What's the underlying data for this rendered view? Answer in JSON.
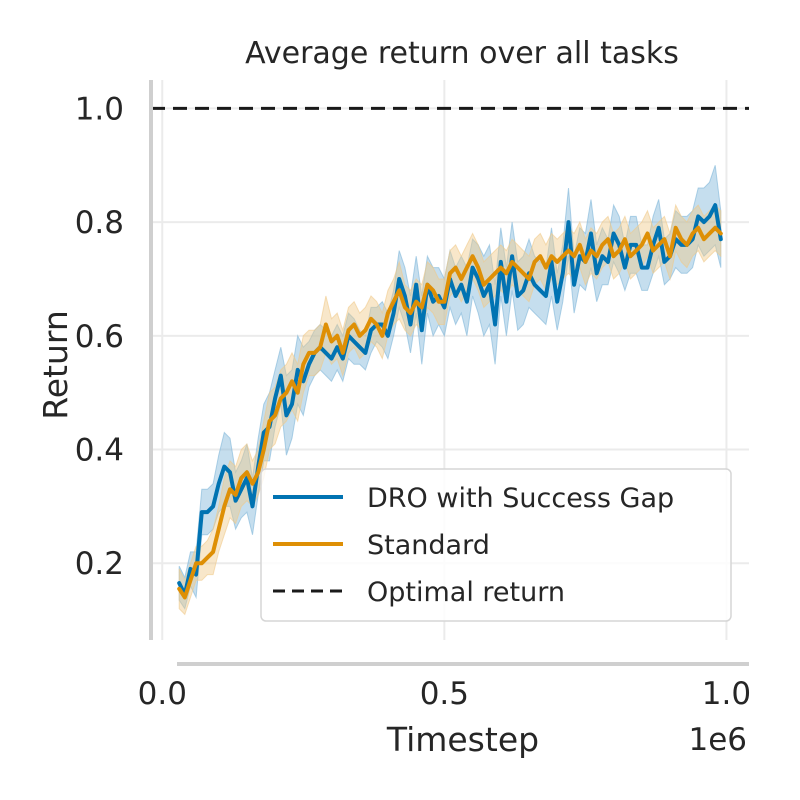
{
  "chart_data": {
    "type": "line",
    "title": "Average return over all tasks",
    "xlabel": "Timestep",
    "ylabel": "Return",
    "x_offset_label": "1e6",
    "xlim": [
      -0.02,
      1.04
    ],
    "ylim": [
      0.065,
      1.05
    ],
    "xticks": [
      0.0,
      0.5,
      1.0
    ],
    "xtick_labels": [
      "0.0",
      "0.5",
      "1.0"
    ],
    "yticks": [
      0.2,
      0.4,
      0.6,
      0.8,
      1.0
    ],
    "ytick_labels": [
      "0.2",
      "0.4",
      "0.6",
      "0.8",
      "1.0"
    ],
    "grid": true,
    "legend_position": "lower-right",
    "series": [
      {
        "name": "DRO with Success Gap",
        "color": "#0173b2",
        "band_color": "#7fb6d9",
        "style": "solid",
        "x": [
          0.03,
          0.04,
          0.05,
          0.06,
          0.07,
          0.08,
          0.09,
          0.1,
          0.11,
          0.12,
          0.13,
          0.14,
          0.15,
          0.16,
          0.17,
          0.18,
          0.19,
          0.2,
          0.21,
          0.22,
          0.23,
          0.24,
          0.25,
          0.26,
          0.27,
          0.28,
          0.29,
          0.3,
          0.31,
          0.32,
          0.33,
          0.34,
          0.35,
          0.36,
          0.37,
          0.38,
          0.39,
          0.4,
          0.41,
          0.42,
          0.43,
          0.44,
          0.45,
          0.46,
          0.47,
          0.48,
          0.49,
          0.5,
          0.51,
          0.52,
          0.53,
          0.54,
          0.55,
          0.56,
          0.57,
          0.58,
          0.59,
          0.6,
          0.61,
          0.62,
          0.63,
          0.64,
          0.65,
          0.66,
          0.67,
          0.68,
          0.69,
          0.7,
          0.71,
          0.72,
          0.73,
          0.74,
          0.75,
          0.76,
          0.77,
          0.78,
          0.79,
          0.8,
          0.81,
          0.82,
          0.83,
          0.84,
          0.85,
          0.86,
          0.87,
          0.88,
          0.89,
          0.9,
          0.91,
          0.92,
          0.93,
          0.94,
          0.95,
          0.96,
          0.97,
          0.98,
          0.99
        ],
        "y": [
          0.165,
          0.145,
          0.19,
          0.18,
          0.29,
          0.29,
          0.3,
          0.34,
          0.37,
          0.36,
          0.31,
          0.33,
          0.35,
          0.3,
          0.37,
          0.43,
          0.44,
          0.49,
          0.53,
          0.46,
          0.48,
          0.54,
          0.52,
          0.55,
          0.57,
          0.58,
          0.57,
          0.56,
          0.58,
          0.56,
          0.6,
          0.59,
          0.58,
          0.57,
          0.61,
          0.62,
          0.62,
          0.6,
          0.64,
          0.7,
          0.67,
          0.62,
          0.69,
          0.61,
          0.69,
          0.66,
          0.67,
          0.65,
          0.7,
          0.67,
          0.69,
          0.66,
          0.72,
          0.7,
          0.67,
          0.69,
          0.62,
          0.73,
          0.66,
          0.74,
          0.67,
          0.68,
          0.71,
          0.69,
          0.68,
          0.67,
          0.73,
          0.66,
          0.71,
          0.8,
          0.69,
          0.74,
          0.73,
          0.78,
          0.71,
          0.74,
          0.73,
          0.78,
          0.76,
          0.72,
          0.76,
          0.76,
          0.72,
          0.72,
          0.76,
          0.79,
          0.73,
          0.74,
          0.77,
          0.76,
          0.76,
          0.77,
          0.81,
          0.8,
          0.81,
          0.83,
          0.77
        ],
        "band_lower": [
          0.135,
          0.12,
          0.16,
          0.14,
          0.25,
          0.25,
          0.26,
          0.29,
          0.3,
          0.3,
          0.26,
          0.28,
          0.29,
          0.25,
          0.32,
          0.38,
          0.38,
          0.44,
          0.48,
          0.39,
          0.42,
          0.48,
          0.46,
          0.51,
          0.53,
          0.54,
          0.53,
          0.52,
          0.54,
          0.52,
          0.56,
          0.55,
          0.55,
          0.54,
          0.57,
          0.59,
          0.58,
          0.56,
          0.6,
          0.65,
          0.62,
          0.57,
          0.64,
          0.55,
          0.64,
          0.6,
          0.62,
          0.6,
          0.65,
          0.62,
          0.64,
          0.6,
          0.67,
          0.64,
          0.6,
          0.62,
          0.55,
          0.67,
          0.6,
          0.68,
          0.61,
          0.62,
          0.65,
          0.64,
          0.63,
          0.62,
          0.67,
          0.61,
          0.66,
          0.74,
          0.64,
          0.69,
          0.68,
          0.72,
          0.66,
          0.69,
          0.69,
          0.73,
          0.71,
          0.68,
          0.71,
          0.71,
          0.68,
          0.68,
          0.71,
          0.74,
          0.69,
          0.7,
          0.72,
          0.71,
          0.71,
          0.72,
          0.76,
          0.74,
          0.75,
          0.76,
          0.72
        ],
        "band_upper": [
          0.195,
          0.175,
          0.22,
          0.22,
          0.33,
          0.33,
          0.34,
          0.39,
          0.43,
          0.42,
          0.36,
          0.38,
          0.41,
          0.35,
          0.42,
          0.48,
          0.5,
          0.54,
          0.58,
          0.53,
          0.54,
          0.6,
          0.58,
          0.59,
          0.61,
          0.62,
          0.61,
          0.6,
          0.62,
          0.6,
          0.64,
          0.63,
          0.61,
          0.6,
          0.65,
          0.65,
          0.66,
          0.64,
          0.68,
          0.75,
          0.72,
          0.67,
          0.74,
          0.67,
          0.74,
          0.72,
          0.72,
          0.7,
          0.75,
          0.72,
          0.74,
          0.72,
          0.77,
          0.76,
          0.74,
          0.76,
          0.69,
          0.79,
          0.72,
          0.8,
          0.73,
          0.74,
          0.77,
          0.74,
          0.73,
          0.72,
          0.79,
          0.71,
          0.76,
          0.86,
          0.74,
          0.79,
          0.78,
          0.84,
          0.76,
          0.79,
          0.77,
          0.83,
          0.81,
          0.76,
          0.81,
          0.81,
          0.76,
          0.76,
          0.81,
          0.84,
          0.77,
          0.78,
          0.82,
          0.81,
          0.81,
          0.82,
          0.86,
          0.86,
          0.87,
          0.9,
          0.82
        ]
      },
      {
        "name": "Standard",
        "color": "#de8f05",
        "band_color": "#f0c98a",
        "style": "solid",
        "x": [
          0.03,
          0.04,
          0.05,
          0.06,
          0.07,
          0.08,
          0.09,
          0.1,
          0.11,
          0.12,
          0.13,
          0.14,
          0.15,
          0.16,
          0.17,
          0.18,
          0.19,
          0.2,
          0.21,
          0.22,
          0.23,
          0.24,
          0.25,
          0.26,
          0.27,
          0.28,
          0.29,
          0.3,
          0.31,
          0.32,
          0.33,
          0.34,
          0.35,
          0.36,
          0.37,
          0.38,
          0.39,
          0.4,
          0.41,
          0.42,
          0.43,
          0.44,
          0.45,
          0.46,
          0.47,
          0.48,
          0.49,
          0.5,
          0.51,
          0.52,
          0.53,
          0.54,
          0.55,
          0.56,
          0.57,
          0.58,
          0.59,
          0.6,
          0.61,
          0.62,
          0.63,
          0.64,
          0.65,
          0.66,
          0.67,
          0.68,
          0.69,
          0.7,
          0.71,
          0.72,
          0.73,
          0.74,
          0.75,
          0.76,
          0.77,
          0.78,
          0.79,
          0.8,
          0.81,
          0.82,
          0.83,
          0.84,
          0.85,
          0.86,
          0.87,
          0.88,
          0.89,
          0.9,
          0.91,
          0.92,
          0.93,
          0.94,
          0.95,
          0.96,
          0.97,
          0.98,
          0.99
        ],
        "y": [
          0.155,
          0.14,
          0.17,
          0.2,
          0.2,
          0.21,
          0.22,
          0.26,
          0.3,
          0.33,
          0.32,
          0.35,
          0.36,
          0.34,
          0.36,
          0.4,
          0.45,
          0.46,
          0.49,
          0.5,
          0.52,
          0.5,
          0.55,
          0.57,
          0.57,
          0.58,
          0.62,
          0.59,
          0.6,
          0.57,
          0.61,
          0.62,
          0.6,
          0.61,
          0.63,
          0.62,
          0.6,
          0.64,
          0.66,
          0.68,
          0.65,
          0.64,
          0.66,
          0.65,
          0.69,
          0.68,
          0.66,
          0.66,
          0.71,
          0.72,
          0.7,
          0.72,
          0.74,
          0.72,
          0.69,
          0.7,
          0.71,
          0.72,
          0.71,
          0.73,
          0.72,
          0.71,
          0.7,
          0.73,
          0.74,
          0.72,
          0.74,
          0.73,
          0.74,
          0.75,
          0.74,
          0.76,
          0.73,
          0.75,
          0.74,
          0.76,
          0.77,
          0.74,
          0.75,
          0.77,
          0.74,
          0.75,
          0.76,
          0.78,
          0.75,
          0.76,
          0.77,
          0.74,
          0.79,
          0.77,
          0.76,
          0.78,
          0.79,
          0.77,
          0.78,
          0.79,
          0.78
        ],
        "band_lower": [
          0.12,
          0.11,
          0.14,
          0.17,
          0.17,
          0.18,
          0.18,
          0.22,
          0.25,
          0.28,
          0.27,
          0.3,
          0.31,
          0.3,
          0.32,
          0.35,
          0.4,
          0.41,
          0.44,
          0.45,
          0.47,
          0.45,
          0.5,
          0.53,
          0.53,
          0.54,
          0.57,
          0.55,
          0.56,
          0.53,
          0.57,
          0.58,
          0.56,
          0.57,
          0.59,
          0.58,
          0.56,
          0.6,
          0.62,
          0.63,
          0.61,
          0.6,
          0.62,
          0.61,
          0.65,
          0.64,
          0.62,
          0.62,
          0.67,
          0.68,
          0.66,
          0.68,
          0.7,
          0.68,
          0.65,
          0.66,
          0.67,
          0.68,
          0.67,
          0.69,
          0.68,
          0.67,
          0.66,
          0.69,
          0.7,
          0.68,
          0.7,
          0.69,
          0.7,
          0.71,
          0.7,
          0.72,
          0.69,
          0.71,
          0.7,
          0.72,
          0.73,
          0.7,
          0.71,
          0.73,
          0.7,
          0.71,
          0.72,
          0.74,
          0.71,
          0.72,
          0.73,
          0.7,
          0.75,
          0.73,
          0.72,
          0.74,
          0.75,
          0.73,
          0.74,
          0.75,
          0.74
        ],
        "band_upper": [
          0.19,
          0.17,
          0.2,
          0.23,
          0.23,
          0.24,
          0.26,
          0.3,
          0.35,
          0.38,
          0.37,
          0.4,
          0.41,
          0.38,
          0.4,
          0.45,
          0.5,
          0.51,
          0.54,
          0.55,
          0.57,
          0.55,
          0.6,
          0.61,
          0.61,
          0.62,
          0.67,
          0.63,
          0.64,
          0.61,
          0.65,
          0.66,
          0.64,
          0.65,
          0.67,
          0.66,
          0.64,
          0.68,
          0.7,
          0.73,
          0.69,
          0.68,
          0.7,
          0.69,
          0.73,
          0.72,
          0.7,
          0.7,
          0.75,
          0.76,
          0.74,
          0.76,
          0.78,
          0.76,
          0.73,
          0.74,
          0.75,
          0.76,
          0.75,
          0.77,
          0.76,
          0.75,
          0.74,
          0.77,
          0.78,
          0.76,
          0.78,
          0.77,
          0.78,
          0.79,
          0.78,
          0.8,
          0.77,
          0.79,
          0.78,
          0.8,
          0.81,
          0.78,
          0.79,
          0.81,
          0.78,
          0.79,
          0.8,
          0.82,
          0.79,
          0.8,
          0.81,
          0.78,
          0.83,
          0.81,
          0.8,
          0.82,
          0.83,
          0.81,
          0.82,
          0.83,
          0.82
        ]
      },
      {
        "name": "Optimal return",
        "color": "#1a1a1a",
        "style": "dashed",
        "x": [
          -0.02,
          1.04
        ],
        "y": [
          1.0,
          1.0
        ]
      }
    ]
  }
}
